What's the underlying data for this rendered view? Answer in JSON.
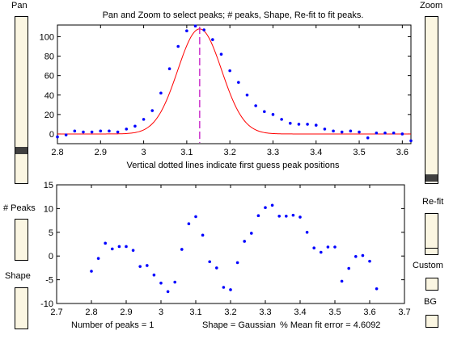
{
  "controls": {
    "pan_label": "Pan",
    "zoom_label": "Zoom",
    "peaks_label": "# Peaks",
    "shape_label": "Shape",
    "refit_label": "Re-fit",
    "custom_label": "Custom",
    "bg_label": "BG",
    "pan_level": 0.81,
    "zoom_level": 0.98
  },
  "chart_data": [
    {
      "type": "scatter",
      "title": "Pan and Zoom to select peaks; # peaks, Shape, Re-fit to fit peaks.",
      "xlabel": "Vertical dotted lines indicate first guess peak positions",
      "ylabel": "",
      "xlim": [
        2.8,
        3.62
      ],
      "ylim": [
        -10,
        112
      ],
      "xticks": [
        "2.8",
        "2.9",
        "3",
        "3.1",
        "3.2",
        "3.3",
        "3.4",
        "3.5",
        "3.6"
      ],
      "yticks": [
        "0",
        "20",
        "40",
        "60",
        "80",
        "100"
      ],
      "series": [
        {
          "kind": "points",
          "color": "#0000ff",
          "x": [
            2.8,
            2.82,
            2.84,
            2.86,
            2.88,
            2.9,
            2.92,
            2.94,
            2.96,
            2.98,
            3.0,
            3.02,
            3.04,
            3.06,
            3.08,
            3.1,
            3.12,
            3.14,
            3.16,
            3.18,
            3.2,
            3.22,
            3.24,
            3.26,
            3.28,
            3.3,
            3.32,
            3.34,
            3.36,
            3.38,
            3.4,
            3.42,
            3.44,
            3.46,
            3.48,
            3.5,
            3.52,
            3.54,
            3.56,
            3.58,
            3.6,
            3.62
          ],
          "y": [
            -3,
            -1,
            3,
            2,
            2,
            3,
            3,
            2,
            5,
            8,
            15,
            24,
            42,
            67,
            90,
            106,
            111,
            107,
            97,
            82,
            65,
            53,
            40,
            29,
            23,
            20,
            15,
            11,
            10,
            10,
            9,
            5,
            3,
            2,
            3,
            2,
            -4,
            1,
            1,
            1,
            0,
            -7
          ]
        },
        {
          "kind": "fit-line",
          "color": "#ff0000",
          "peak_center": 3.13,
          "peak_height": 108,
          "peak_width": 0.12
        },
        {
          "kind": "guess-line",
          "color": "#c000c0",
          "x": 3.13
        }
      ]
    },
    {
      "type": "scatter",
      "title": "",
      "xlabel": "",
      "ylabel": "",
      "xlim": [
        2.7,
        3.7
      ],
      "ylim": [
        -10,
        15
      ],
      "xticks": [
        "2.7",
        "2.8",
        "2.9",
        "3",
        "3.1",
        "3.2",
        "3.3",
        "3.4",
        "3.5",
        "3.6",
        "3.7"
      ],
      "yticks": [
        "-10",
        "-5",
        "0",
        "5",
        "10",
        "15"
      ],
      "series": [
        {
          "kind": "points",
          "color": "#0000ff",
          "x": [
            2.8,
            2.82,
            2.84,
            2.86,
            2.88,
            2.9,
            2.92,
            2.94,
            2.96,
            2.98,
            3.0,
            3.02,
            3.04,
            3.06,
            3.08,
            3.1,
            3.12,
            3.14,
            3.16,
            3.18,
            3.2,
            3.22,
            3.24,
            3.26,
            3.28,
            3.3,
            3.32,
            3.34,
            3.36,
            3.38,
            3.4,
            3.42,
            3.44,
            3.46,
            3.48,
            3.5,
            3.52,
            3.54,
            3.56,
            3.58,
            3.6,
            3.62
          ],
          "y": [
            -3.2,
            -0.5,
            2.7,
            1.5,
            2,
            2,
            1.2,
            -2.2,
            -2,
            -4,
            -5.7,
            -7.5,
            -5.5,
            1.4,
            6.8,
            8.3,
            4.4,
            -1.2,
            -2.5,
            -6.6,
            -7.1,
            -1.4,
            3.1,
            4.8,
            8.5,
            10.2,
            10.7,
            8.4,
            8.4,
            8.6,
            8.2,
            5,
            1.7,
            0.8,
            1.9,
            1.9,
            -5.3,
            -2.6,
            -0.1,
            0.1,
            -1.1,
            -6.9
          ]
        }
      ]
    }
  ],
  "status": {
    "num_peaks": "Number of peaks = 1",
    "shape": "Shape = Gaussian",
    "error": "% Mean fit error = 4.6092"
  }
}
